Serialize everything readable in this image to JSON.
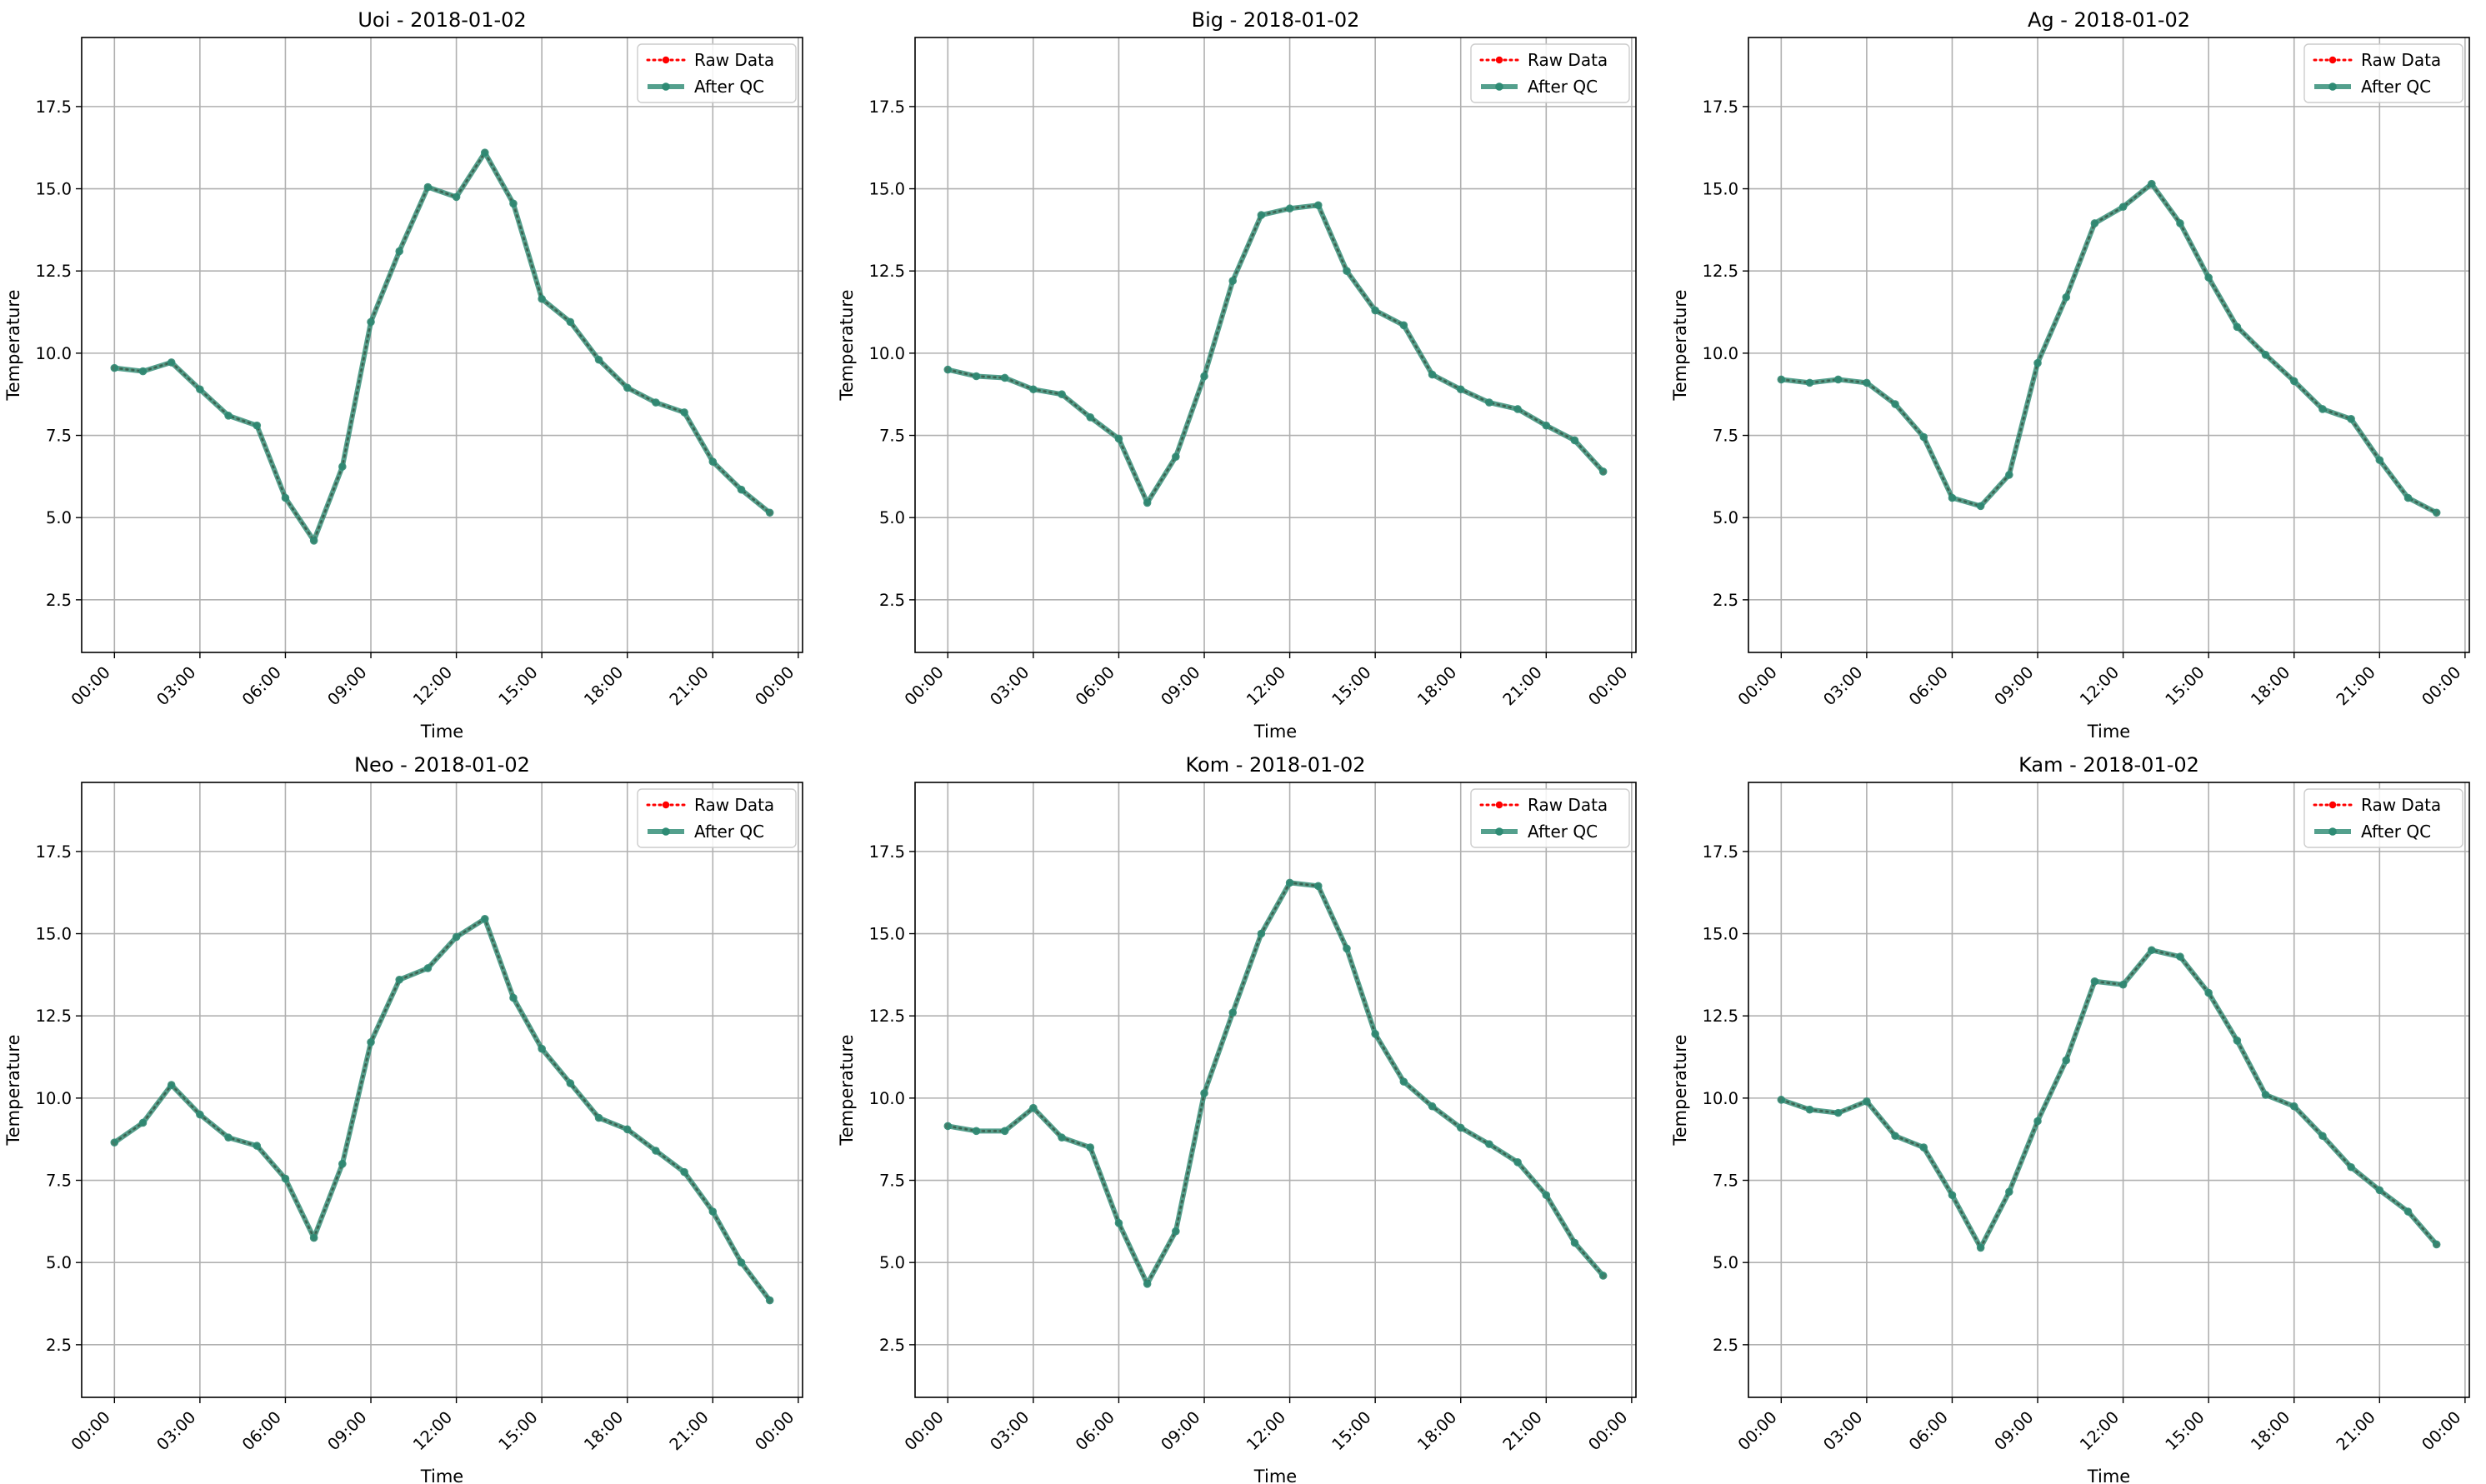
{
  "figure": {
    "background": "#ffffff"
  },
  "style": {
    "raw_color": "#ff0000",
    "qc_color": "#2e8b74",
    "grid_color": "#b0b0b0",
    "legend_raw_label": "Raw Data",
    "legend_qc_label": "After QC"
  },
  "chart_data": [
    {
      "type": "line",
      "title": "Uoi - 2018-01-02",
      "xlabel": "Time",
      "ylabel": "Temperature",
      "x_ticks": [
        "00:00",
        "03:00",
        "06:00",
        "09:00",
        "12:00",
        "15:00",
        "18:00",
        "21:00",
        "00:00"
      ],
      "y_ticks": [
        "2.5",
        "5.0",
        "7.5",
        "10.0",
        "12.5",
        "15.0",
        "17.5"
      ],
      "ylim": [
        0.9,
        19.6
      ],
      "x_hours": [
        0,
        1,
        2,
        3,
        4,
        5,
        6,
        7,
        8,
        9,
        10,
        11,
        12,
        13,
        14,
        15,
        16,
        17,
        18,
        19,
        20,
        21,
        22,
        23
      ],
      "legend_position": "upper right",
      "grid": true,
      "series": [
        {
          "name": "Raw Data",
          "values": [
            9.55,
            9.45,
            9.72,
            8.9,
            8.1,
            7.8,
            5.6,
            4.3,
            6.55,
            10.95,
            13.1,
            15.05,
            14.75,
            16.1,
            14.55,
            11.65,
            10.95,
            9.8,
            8.95,
            8.5,
            8.2,
            6.7,
            5.85,
            5.15
          ]
        },
        {
          "name": "After QC",
          "values": [
            9.55,
            9.45,
            9.72,
            8.9,
            8.1,
            7.8,
            5.6,
            4.3,
            6.55,
            10.95,
            13.1,
            15.05,
            14.75,
            16.1,
            14.55,
            11.65,
            10.95,
            9.8,
            8.95,
            8.5,
            8.2,
            6.7,
            5.85,
            5.15
          ]
        }
      ]
    },
    {
      "type": "line",
      "title": "Big - 2018-01-02",
      "xlabel": "Time",
      "ylabel": "Temperature",
      "x_ticks": [
        "00:00",
        "03:00",
        "06:00",
        "09:00",
        "12:00",
        "15:00",
        "18:00",
        "21:00",
        "00:00"
      ],
      "y_ticks": [
        "2.5",
        "5.0",
        "7.5",
        "10.0",
        "12.5",
        "15.0",
        "17.5"
      ],
      "ylim": [
        0.9,
        19.6
      ],
      "x_hours": [
        0,
        1,
        2,
        3,
        4,
        5,
        6,
        7,
        8,
        9,
        10,
        11,
        12,
        13,
        14,
        15,
        16,
        17,
        18,
        19,
        20,
        21,
        22,
        23
      ],
      "legend_position": "upper right",
      "grid": true,
      "series": [
        {
          "name": "Raw Data",
          "values": [
            9.5,
            9.3,
            9.25,
            8.9,
            8.75,
            8.05,
            7.4,
            5.45,
            6.85,
            9.3,
            12.2,
            14.2,
            14.4,
            14.5,
            12.5,
            11.3,
            10.85,
            9.35,
            8.9,
            8.5,
            8.3,
            7.8,
            7.35,
            6.4
          ]
        },
        {
          "name": "After QC",
          "values": [
            9.5,
            9.3,
            9.25,
            8.9,
            8.75,
            8.05,
            7.4,
            5.45,
            6.85,
            9.3,
            12.2,
            14.2,
            14.4,
            14.5,
            12.5,
            11.3,
            10.85,
            9.35,
            8.9,
            8.5,
            8.3,
            7.8,
            7.35,
            6.4
          ]
        }
      ]
    },
    {
      "type": "line",
      "title": "Ag - 2018-01-02",
      "xlabel": "Time",
      "ylabel": "Temperature",
      "x_ticks": [
        "00:00",
        "03:00",
        "06:00",
        "09:00",
        "12:00",
        "15:00",
        "18:00",
        "21:00",
        "00:00"
      ],
      "y_ticks": [
        "2.5",
        "5.0",
        "7.5",
        "10.0",
        "12.5",
        "15.0",
        "17.5"
      ],
      "ylim": [
        0.9,
        19.6
      ],
      "x_hours": [
        0,
        1,
        2,
        3,
        4,
        5,
        6,
        7,
        8,
        9,
        10,
        11,
        12,
        13,
        14,
        15,
        16,
        17,
        18,
        19,
        20,
        21,
        22,
        23
      ],
      "legend_position": "upper right",
      "grid": true,
      "series": [
        {
          "name": "Raw Data",
          "values": [
            9.2,
            9.1,
            9.2,
            9.1,
            8.45,
            7.45,
            5.6,
            5.35,
            6.3,
            9.7,
            11.7,
            13.95,
            14.45,
            15.15,
            13.95,
            12.3,
            10.8,
            9.95,
            9.15,
            8.3,
            8.0,
            6.75,
            5.6,
            5.15
          ]
        },
        {
          "name": "After QC",
          "values": [
            9.2,
            9.1,
            9.2,
            9.1,
            8.45,
            7.45,
            5.6,
            5.35,
            6.3,
            9.7,
            11.7,
            13.95,
            14.45,
            15.15,
            13.95,
            12.3,
            10.8,
            9.95,
            9.15,
            8.3,
            8.0,
            6.75,
            5.6,
            5.15
          ]
        }
      ]
    },
    {
      "type": "line",
      "title": "Neo - 2018-01-02",
      "xlabel": "Time",
      "ylabel": "Temperature",
      "x_ticks": [
        "00:00",
        "03:00",
        "06:00",
        "09:00",
        "12:00",
        "15:00",
        "18:00",
        "21:00",
        "00:00"
      ],
      "y_ticks": [
        "2.5",
        "5.0",
        "7.5",
        "10.0",
        "12.5",
        "15.0",
        "17.5"
      ],
      "ylim": [
        0.9,
        19.6
      ],
      "x_hours": [
        0,
        1,
        2,
        3,
        4,
        5,
        6,
        7,
        8,
        9,
        10,
        11,
        12,
        13,
        14,
        15,
        16,
        17,
        18,
        19,
        20,
        21,
        22,
        23
      ],
      "legend_position": "upper right",
      "grid": true,
      "series": [
        {
          "name": "Raw Data",
          "values": [
            8.65,
            9.25,
            10.4,
            9.5,
            8.8,
            8.55,
            7.55,
            5.75,
            8.0,
            11.7,
            13.6,
            13.95,
            14.9,
            15.45,
            13.05,
            11.5,
            10.45,
            9.4,
            9.05,
            8.4,
            7.75,
            6.55,
            5.0,
            3.85
          ]
        },
        {
          "name": "After QC",
          "values": [
            8.65,
            9.25,
            10.4,
            9.5,
            8.8,
            8.55,
            7.55,
            5.75,
            8.0,
            11.7,
            13.6,
            13.95,
            14.9,
            15.45,
            13.05,
            11.5,
            10.45,
            9.4,
            9.05,
            8.4,
            7.75,
            6.55,
            5.0,
            3.85
          ]
        }
      ]
    },
    {
      "type": "line",
      "title": "Kom - 2018-01-02",
      "xlabel": "Time",
      "ylabel": "Temperature",
      "x_ticks": [
        "00:00",
        "03:00",
        "06:00",
        "09:00",
        "12:00",
        "15:00",
        "18:00",
        "21:00",
        "00:00"
      ],
      "y_ticks": [
        "2.5",
        "5.0",
        "7.5",
        "10.0",
        "12.5",
        "15.0",
        "17.5"
      ],
      "ylim": [
        0.9,
        19.6
      ],
      "x_hours": [
        0,
        1,
        2,
        3,
        4,
        5,
        6,
        7,
        8,
        9,
        10,
        11,
        12,
        13,
        14,
        15,
        16,
        17,
        18,
        19,
        20,
        21,
        22,
        23
      ],
      "legend_position": "upper right",
      "grid": true,
      "series": [
        {
          "name": "Raw Data",
          "values": [
            9.15,
            9.0,
            9.0,
            9.7,
            8.8,
            8.5,
            6.2,
            4.35,
            5.95,
            10.15,
            12.6,
            15.0,
            16.55,
            16.45,
            14.55,
            11.95,
            10.5,
            9.75,
            9.1,
            8.6,
            8.05,
            7.05,
            5.6,
            4.6
          ]
        },
        {
          "name": "After QC",
          "values": [
            9.15,
            9.0,
            9.0,
            9.7,
            8.8,
            8.5,
            6.2,
            4.35,
            5.95,
            10.15,
            12.6,
            15.0,
            16.55,
            16.45,
            14.55,
            11.95,
            10.5,
            9.75,
            9.1,
            8.6,
            8.05,
            7.05,
            5.6,
            4.6
          ]
        }
      ]
    },
    {
      "type": "line",
      "title": "Kam - 2018-01-02",
      "xlabel": "Time",
      "ylabel": "Temperature",
      "x_ticks": [
        "00:00",
        "03:00",
        "06:00",
        "09:00",
        "12:00",
        "15:00",
        "18:00",
        "21:00",
        "00:00"
      ],
      "y_ticks": [
        "2.5",
        "5.0",
        "7.5",
        "10.0",
        "12.5",
        "15.0",
        "17.5"
      ],
      "ylim": [
        0.9,
        19.6
      ],
      "x_hours": [
        0,
        1,
        2,
        3,
        4,
        5,
        6,
        7,
        8,
        9,
        10,
        11,
        12,
        13,
        14,
        15,
        16,
        17,
        18,
        19,
        20,
        21,
        22,
        23
      ],
      "legend_position": "upper right",
      "grid": true,
      "series": [
        {
          "name": "Raw Data",
          "values": [
            9.95,
            9.65,
            9.55,
            9.9,
            8.85,
            8.5,
            7.05,
            5.45,
            7.15,
            9.3,
            11.15,
            13.55,
            13.45,
            14.5,
            14.3,
            13.2,
            11.75,
            10.1,
            9.75,
            8.85,
            7.9,
            7.2,
            6.55,
            5.55
          ]
        },
        {
          "name": "After QC",
          "values": [
            9.95,
            9.65,
            9.55,
            9.9,
            8.85,
            8.5,
            7.05,
            5.45,
            7.15,
            9.3,
            11.15,
            13.55,
            13.45,
            14.5,
            14.3,
            13.2,
            11.75,
            10.1,
            9.75,
            8.85,
            7.9,
            7.2,
            6.55,
            5.55
          ]
        }
      ]
    }
  ]
}
